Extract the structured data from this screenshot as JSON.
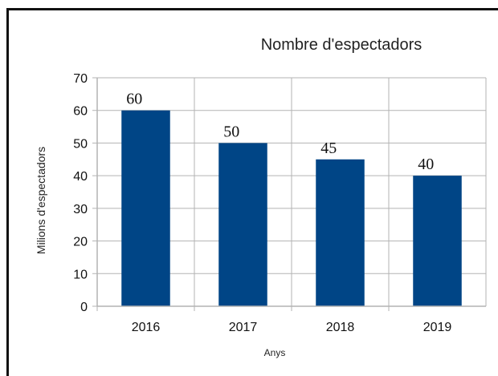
{
  "chart_data": {
    "type": "bar",
    "title": "Nombre d'espectadors",
    "xlabel": "Anys",
    "ylabel": "Milions d'espectadors",
    "categories": [
      "2016",
      "2017",
      "2018",
      "2019"
    ],
    "values": [
      60,
      50,
      45,
      40
    ],
    "data_labels": [
      "60",
      "50",
      "45",
      "40"
    ],
    "ylim": [
      0,
      70
    ],
    "yticks": [
      0,
      10,
      20,
      30,
      40,
      50,
      60,
      70
    ],
    "ytick_labels": [
      "0",
      "10",
      "20",
      "30",
      "40",
      "50",
      "60",
      "70"
    ],
    "grid": true,
    "legend": "none",
    "bar_color": "#004586",
    "grid_color": "#b3b3b3"
  }
}
